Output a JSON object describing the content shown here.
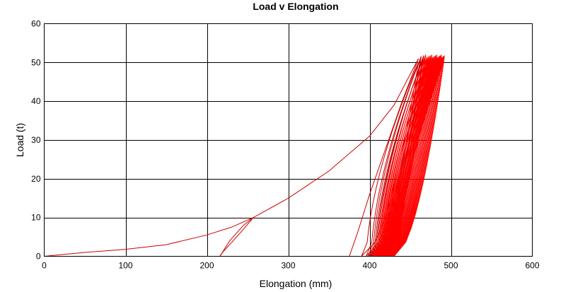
{
  "chart_data": {
    "type": "line",
    "title": "Load v Elongation",
    "xlabel": "Elongation (mm)",
    "ylabel": "Load (t)",
    "xlim": [
      0,
      600
    ],
    "ylim": [
      0,
      60
    ],
    "x_ticks": [
      0,
      100,
      200,
      300,
      400,
      500,
      600
    ],
    "y_ticks": [
      0,
      10,
      20,
      30,
      40,
      50,
      60
    ],
    "grid": true,
    "legend": "none",
    "series_color": "#cc0000",
    "dense_color": "#ff0000",
    "series": [
      {
        "x": [
          0,
          50,
          100,
          150,
          200,
          230,
          257
        ],
        "y": [
          0,
          1,
          1.8,
          3,
          5.5,
          7.5,
          10
        ]
      },
      {
        "x": [
          257,
          245,
          230,
          220,
          216
        ],
        "y": [
          10,
          7,
          3.5,
          1.2,
          0
        ]
      },
      {
        "x": [
          216,
          228,
          245,
          257
        ],
        "y": [
          0,
          4,
          8,
          10
        ]
      },
      {
        "x": [
          257,
          300,
          350,
          400,
          430,
          460
        ],
        "y": [
          10,
          15,
          22,
          31,
          39,
          51
        ]
      },
      {
        "x": [
          460,
          440,
          420,
          400,
          385,
          375
        ],
        "y": [
          51,
          40,
          28,
          16,
          6,
          0
        ]
      }
    ],
    "cycles": {
      "count": 50,
      "top_x_start": 460,
      "top_x_end": 492,
      "top_y": [
        50,
        52
      ],
      "bottom_x_start": 390,
      "bottom_x_end": 430
    }
  }
}
